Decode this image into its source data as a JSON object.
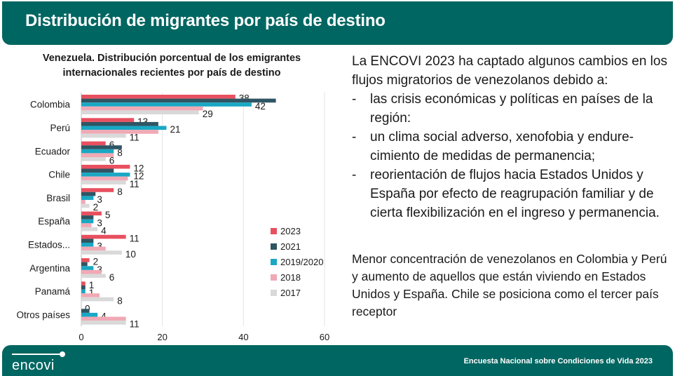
{
  "header": {
    "title": "Distribución de migrantes por país de destino"
  },
  "right_panel": {
    "intro": "La ENCOVI 2023 ha captado algunos cambios en los flujos migratorios de venezolanos debido a:",
    "bullet_marker": "-",
    "bullets": [
      "las crisis económicas y políticas en países de la región:",
      "un clima social adverso, xenofobia y endure-cimiento de medidas de permanencia;",
      "reorientación de flujos hacia Estados Unidos y España por efecto de reagrupación familiar y de cierta flexibilización en el ingreso y permanencia."
    ],
    "summary": "Menor concentración de venezolanos en Colombia y Perú y aumento de aquellos que están viviendo en Estados Unidos y España. Chile se posiciona como el tercer país receptor"
  },
  "footer": {
    "logo_text": "encovi",
    "caption": "Encuesta Nacional sobre Condiciones de Vida 2023"
  },
  "chart_data": {
    "type": "bar",
    "orientation": "horizontal",
    "title": "Venezuela. Distribución porcentual de los emigrantes internacionales recientes por país de destino",
    "xlabel": "",
    "ylabel": "",
    "xlim": [
      0,
      60
    ],
    "xticks": [
      0,
      20,
      40,
      60
    ],
    "grid": true,
    "legend_position": "right",
    "categories": [
      "Colombia",
      "Perú",
      "Ecuador",
      "Chile",
      "Brasil",
      "España",
      "Estados...",
      "Argentina",
      "Panamá",
      "Otros países"
    ],
    "series": [
      {
        "name": "2023",
        "color": "#e8505f",
        "labeled": true,
        "values": [
          38,
          13,
          6,
          12,
          8,
          5,
          11,
          2,
          1,
          0
        ]
      },
      {
        "name": "2021",
        "color": "#2f5563",
        "labeled": false,
        "values": [
          48,
          19,
          10,
          8,
          3.5,
          3,
          3,
          1.5,
          1,
          2
        ]
      },
      {
        "name": "2019/2020",
        "color": "#19a8c4",
        "labeled": true,
        "values": [
          42,
          21,
          8,
          12,
          3,
          3,
          3,
          3,
          1,
          4
        ]
      },
      {
        "name": "2018",
        "color": "#f0a9b5",
        "labeled": false,
        "values": [
          30,
          19,
          8,
          11.5,
          1,
          2.5,
          6,
          5,
          4.5,
          11
        ]
      },
      {
        "name": "2017",
        "color": "#d9d9d9",
        "labeled": true,
        "values": [
          29,
          11,
          6,
          11,
          2,
          4,
          10,
          6,
          8,
          11
        ]
      }
    ]
  }
}
